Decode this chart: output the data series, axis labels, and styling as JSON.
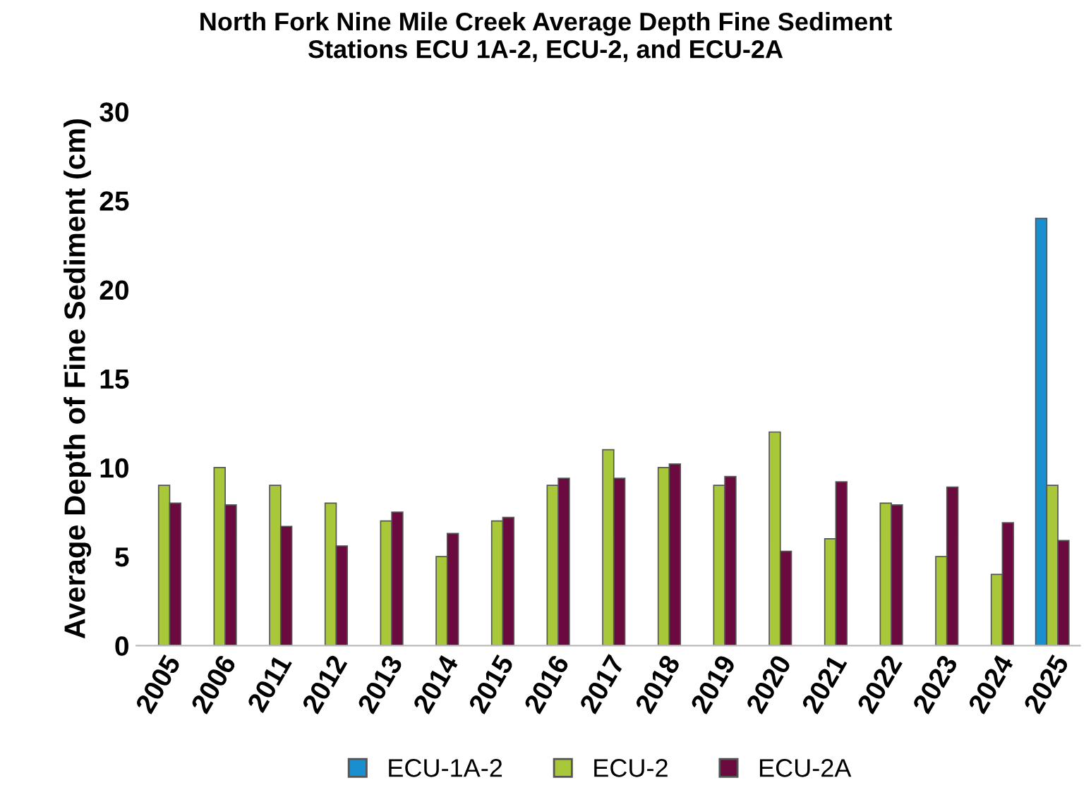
{
  "chart_data": {
    "type": "bar",
    "title": "North Fork Nine Mile Creek Average Depth Fine Sediment\nStations ECU 1A-2, ECU-2, and ECU-2A",
    "ylabel": "Average Depth of Fine Sediment (cm)",
    "categories": [
      "2005",
      "2006",
      "2011",
      "2012",
      "2013",
      "2014",
      "2015",
      "2016",
      "2017",
      "2018",
      "2019",
      "2020",
      "2021",
      "2022",
      "2023",
      "2024",
      "2025"
    ],
    "series": [
      {
        "name": "ECU-1A-2",
        "color": "#1a8fd0",
        "values": [
          null,
          null,
          null,
          null,
          null,
          null,
          null,
          null,
          null,
          null,
          null,
          null,
          null,
          null,
          null,
          null,
          24
        ]
      },
      {
        "name": "ECU-2",
        "color": "#a8c83a",
        "values": [
          9,
          10,
          9,
          8,
          7,
          5,
          7,
          9,
          11,
          10,
          9,
          12,
          6,
          8,
          5,
          4,
          9
        ]
      },
      {
        "name": "ECU-2A",
        "color": "#6b0a3e",
        "values": [
          8.0,
          7.9,
          6.7,
          5.6,
          7.5,
          6.3,
          7.2,
          9.4,
          9.4,
          10.2,
          9.5,
          5.3,
          9.2,
          7.9,
          8.9,
          6.9,
          5.9
        ]
      }
    ],
    "ylim": [
      0,
      30
    ],
    "yticks": [
      0,
      5,
      10,
      15,
      20,
      25,
      30
    ],
    "grid": false,
    "legend": "bottom"
  }
}
